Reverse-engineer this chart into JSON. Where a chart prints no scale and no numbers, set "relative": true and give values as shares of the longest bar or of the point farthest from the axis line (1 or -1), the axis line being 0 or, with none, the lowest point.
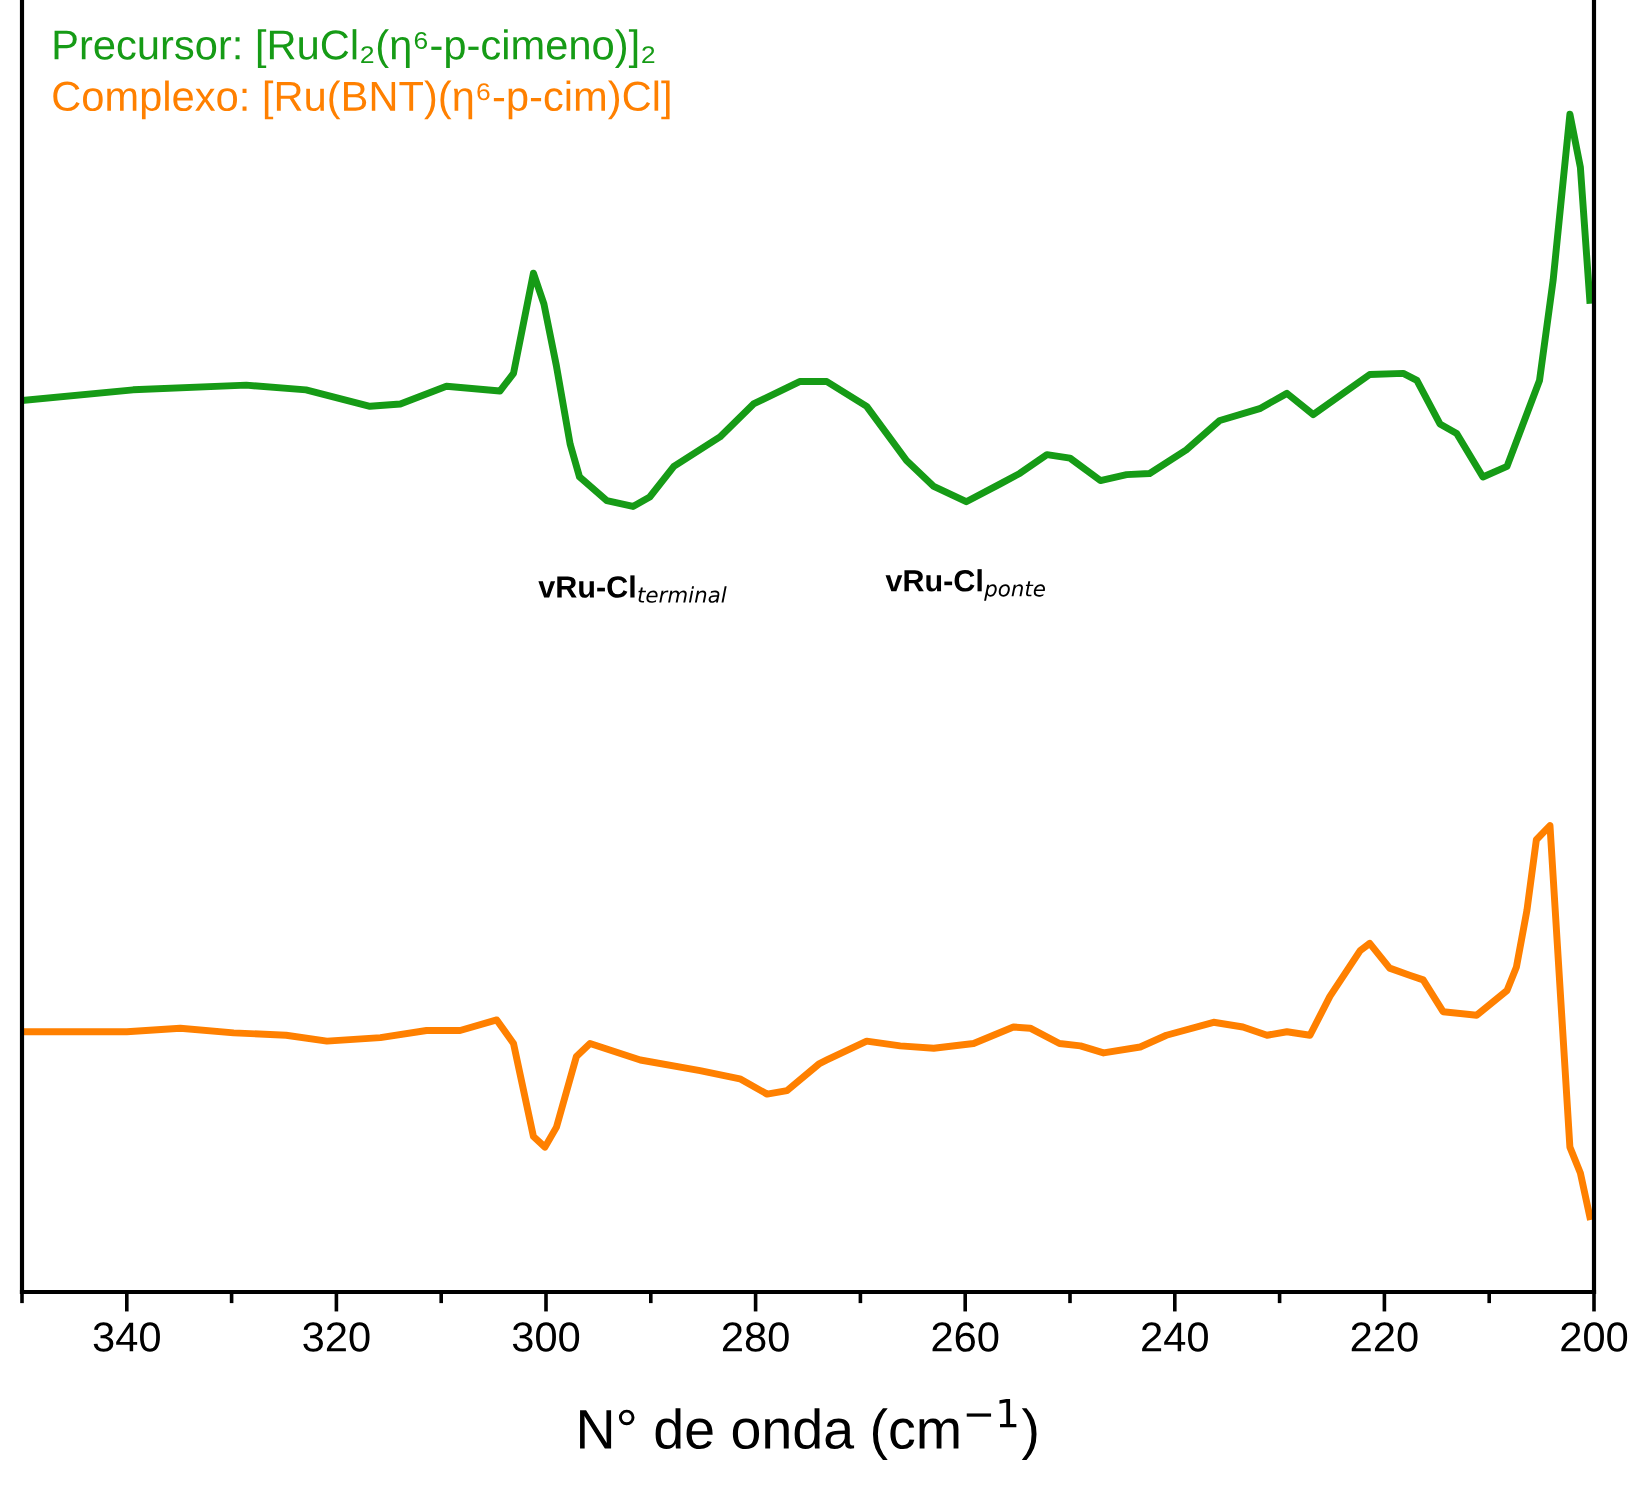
{
  "chart_data": {
    "type": "line",
    "relative": true,
    "xlabel": "N° de onda (cm$^{−1}$)",
    "xlim": [
      350,
      200
    ],
    "xticks": [
      {
        "value": 350,
        "label": null
      },
      340,
      {
        "value": 330,
        "label": null
      },
      320,
      {
        "value": 310,
        "label": null
      },
      300,
      {
        "value": 290,
        "label": null
      },
      280,
      {
        "value": 270,
        "label": null
      },
      260,
      {
        "value": 250,
        "label": null
      },
      240,
      {
        "value": 230,
        "label": null
      },
      220,
      {
        "value": 210,
        "label": null
      },
      200
    ],
    "legend": "top left",
    "grid": false,
    "tick_labels": "x",
    "annotations": [
      {
        "text": "vRu-Cl$_{terminal}$",
        "x": 291.7,
        "y": 0.667
      },
      {
        "text": "vRu-Cl$_{ponte}$",
        "x": 259.9,
        "y": 0.671
      }
    ],
    "series": [
      {
        "name": "Precursor: [RuCl₂(η⁶-p-cimeno)]₂",
        "color": "#169b16",
        "x": [
          350,
          339.4,
          328.6,
          322.9,
          316.8,
          313.9,
          309.5,
          304.4,
          303.1,
          301.2,
          300.2,
          299.0,
          297.7,
          296.8,
          294.2,
          291.7,
          290.1,
          287.8,
          283.4,
          280.2,
          275.8,
          273.2,
          269.4,
          265.6,
          263.0,
          259.9,
          256.7,
          254.8,
          252.2,
          250.0,
          247.1,
          244.6,
          242.4,
          238.9,
          235.7,
          231.9,
          229.3,
          226.8,
          221.4,
          218.2,
          216.9,
          214.7,
          213.1,
          210.6,
          208.3,
          205.2,
          203.9,
          202.3,
          201.3,
          200.4
        ],
        "values": [
          0.757,
          0.766,
          0.77,
          0.766,
          0.752,
          0.754,
          0.769,
          0.765,
          0.78,
          0.865,
          0.839,
          0.786,
          0.72,
          0.692,
          0.672,
          0.667,
          0.675,
          0.701,
          0.726,
          0.754,
          0.773,
          0.773,
          0.752,
          0.706,
          0.684,
          0.671,
          0.686,
          0.695,
          0.711,
          0.708,
          0.689,
          0.694,
          0.695,
          0.715,
          0.74,
          0.75,
          0.763,
          0.745,
          0.779,
          0.78,
          0.774,
          0.737,
          0.729,
          0.692,
          0.701,
          0.774,
          0.859,
          1.0,
          0.955,
          0.842
        ]
      },
      {
        "name": "Complexo: [Ru(BNT)(η⁶-p-cim)Cl]",
        "color": "#ff8000",
        "x": [
          350,
          340.0,
          334.9,
          329.8,
          324.8,
          320.9,
          315.8,
          311.4,
          308.2,
          304.7,
          303.1,
          301.2,
          300.1,
          299.0,
          297.1,
          295.8,
          291.0,
          285.3,
          281.5,
          278.9,
          277.0,
          273.9,
          273.2,
          269.4,
          266.2,
          263.0,
          259.2,
          255.4,
          253.8,
          251.0,
          249.0,
          246.8,
          243.3,
          240.8,
          236.3,
          233.5,
          231.2,
          229.3,
          227.1,
          225.2,
          222.3,
          221.4,
          219.5,
          217.6,
          216.3,
          214.4,
          211.2,
          208.3,
          207.4,
          206.4,
          205.5,
          204.2,
          202.3,
          201.3,
          200.4
        ],
        "values": [
          0.221,
          0.221,
          0.224,
          0.22,
          0.218,
          0.213,
          0.216,
          0.222,
          0.222,
          0.231,
          0.211,
          0.132,
          0.123,
          0.14,
          0.2,
          0.211,
          0.197,
          0.188,
          0.181,
          0.168,
          0.171,
          0.194,
          0.197,
          0.213,
          0.209,
          0.207,
          0.211,
          0.225,
          0.224,
          0.211,
          0.209,
          0.203,
          0.208,
          0.218,
          0.229,
          0.225,
          0.218,
          0.221,
          0.218,
          0.251,
          0.29,
          0.296,
          0.275,
          0.269,
          0.265,
          0.238,
          0.235,
          0.256,
          0.276,
          0.324,
          0.384,
          0.396,
          0.123,
          0.101,
          0.064
        ]
      }
    ]
  }
}
